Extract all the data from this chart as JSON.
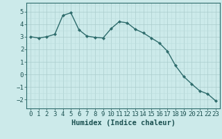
{
  "x": [
    0,
    1,
    2,
    3,
    4,
    5,
    6,
    7,
    8,
    9,
    10,
    11,
    12,
    13,
    14,
    15,
    16,
    17,
    18,
    19,
    20,
    21,
    22,
    23
  ],
  "y": [
    3.0,
    2.9,
    3.0,
    3.2,
    4.7,
    4.9,
    3.55,
    3.05,
    2.95,
    2.9,
    3.65,
    4.2,
    4.1,
    3.6,
    3.3,
    2.9,
    2.5,
    1.85,
    0.7,
    -0.15,
    -0.75,
    -1.3,
    -1.55,
    -2.1
  ],
  "line_color": "#2d6b6b",
  "marker": "D",
  "marker_size": 2.2,
  "bg_color": "#cceaea",
  "grid_major_color": "#aacccc",
  "grid_minor_color": "#bbdddd",
  "xlabel": "Humidex (Indice chaleur)",
  "xlim": [
    -0.5,
    23.5
  ],
  "ylim": [
    -2.7,
    5.7
  ],
  "yticks": [
    -2,
    -1,
    0,
    1,
    2,
    3,
    4,
    5
  ],
  "xticks": [
    0,
    1,
    2,
    3,
    4,
    5,
    6,
    7,
    8,
    9,
    10,
    11,
    12,
    13,
    14,
    15,
    16,
    17,
    18,
    19,
    20,
    21,
    22,
    23
  ],
  "font_color": "#1a5050",
  "xlabel_fontsize": 7.5,
  "tick_fontsize": 6.5,
  "linewidth": 1.0
}
